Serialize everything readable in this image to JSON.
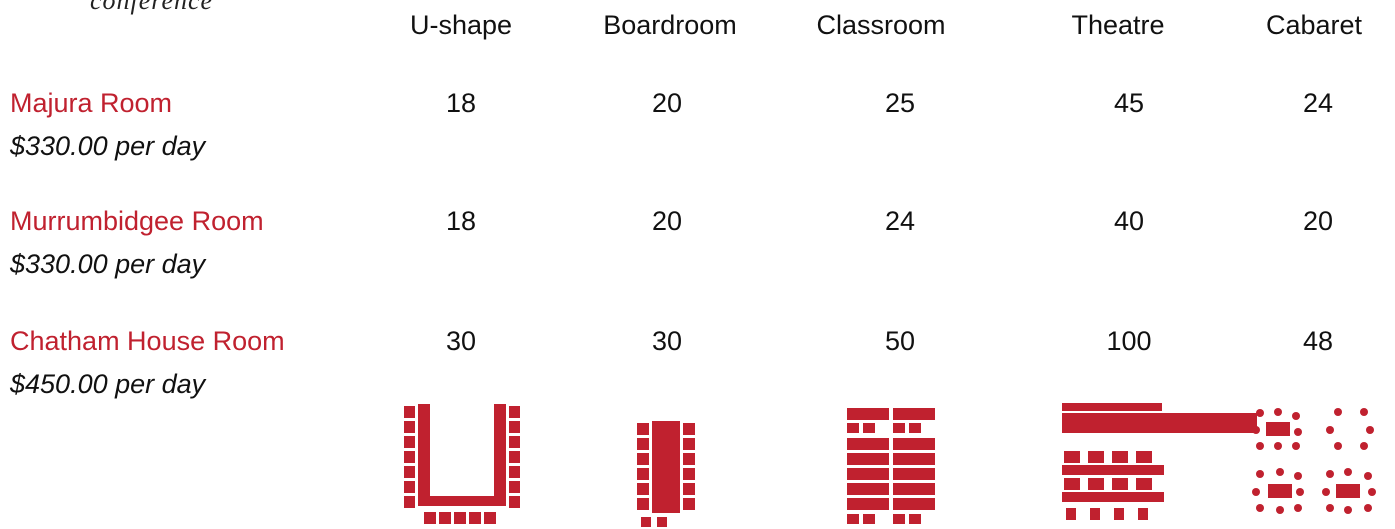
{
  "page": {
    "cut_title": "conference"
  },
  "columns": [
    "U-shape",
    "Boardroom",
    "Classroom",
    "Theatre",
    "Cabaret"
  ],
  "rooms": [
    {
      "name": "Majura Room",
      "price": "$330.00 per day",
      "capacities": [
        "18",
        "20",
        "25",
        "45",
        "24"
      ]
    },
    {
      "name": "Murrumbidgee Room",
      "price": "$330.00 per day",
      "capacities": [
        "18",
        "20",
        "24",
        "40",
        "20"
      ]
    },
    {
      "name": "Chatham House Room",
      "price": "$450.00 per day",
      "capacities": [
        "30",
        "30",
        "50",
        "100",
        "48"
      ]
    }
  ],
  "diagrams": [
    {
      "layout": "U-shape",
      "icon": "u-shape-layout-icon"
    },
    {
      "layout": "Boardroom",
      "icon": "boardroom-layout-icon"
    },
    {
      "layout": "Classroom",
      "icon": "classroom-layout-icon"
    },
    {
      "layout": "Theatre",
      "icon": "theatre-layout-icon"
    },
    {
      "layout": "Cabaret",
      "icon": "cabaret-layout-icon"
    }
  ],
  "colors": {
    "accent": "#c0212f",
    "text": "#111111",
    "background": "#ffffff"
  }
}
